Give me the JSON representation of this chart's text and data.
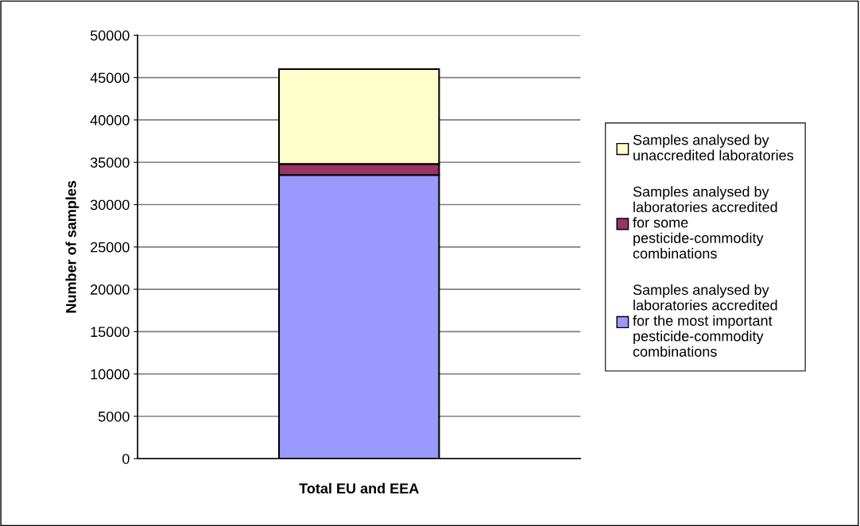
{
  "chart_data": {
    "type": "bar",
    "stacked": true,
    "ylabel": "Number of samples",
    "categories": [
      "Total EU and EEA"
    ],
    "series": [
      {
        "name": "Samples analysed by laboratories accredited for the most important pesticide-commodity combinations",
        "color": "#9999ff",
        "values": [
          33500
        ]
      },
      {
        "name": "Samples analysed by laboratories accredited for some pesticide-commodity combinations",
        "color": "#993366",
        "values": [
          1300
        ]
      },
      {
        "name": "Samples analysed by unaccredited laboratories",
        "color": "#ffffcc",
        "values": [
          11200
        ]
      }
    ],
    "ylim": [
      0,
      50000
    ],
    "yticks": [
      0,
      5000,
      10000,
      15000,
      20000,
      25000,
      30000,
      35000,
      40000,
      45000,
      50000
    ],
    "grid": "y",
    "legend": "right"
  }
}
